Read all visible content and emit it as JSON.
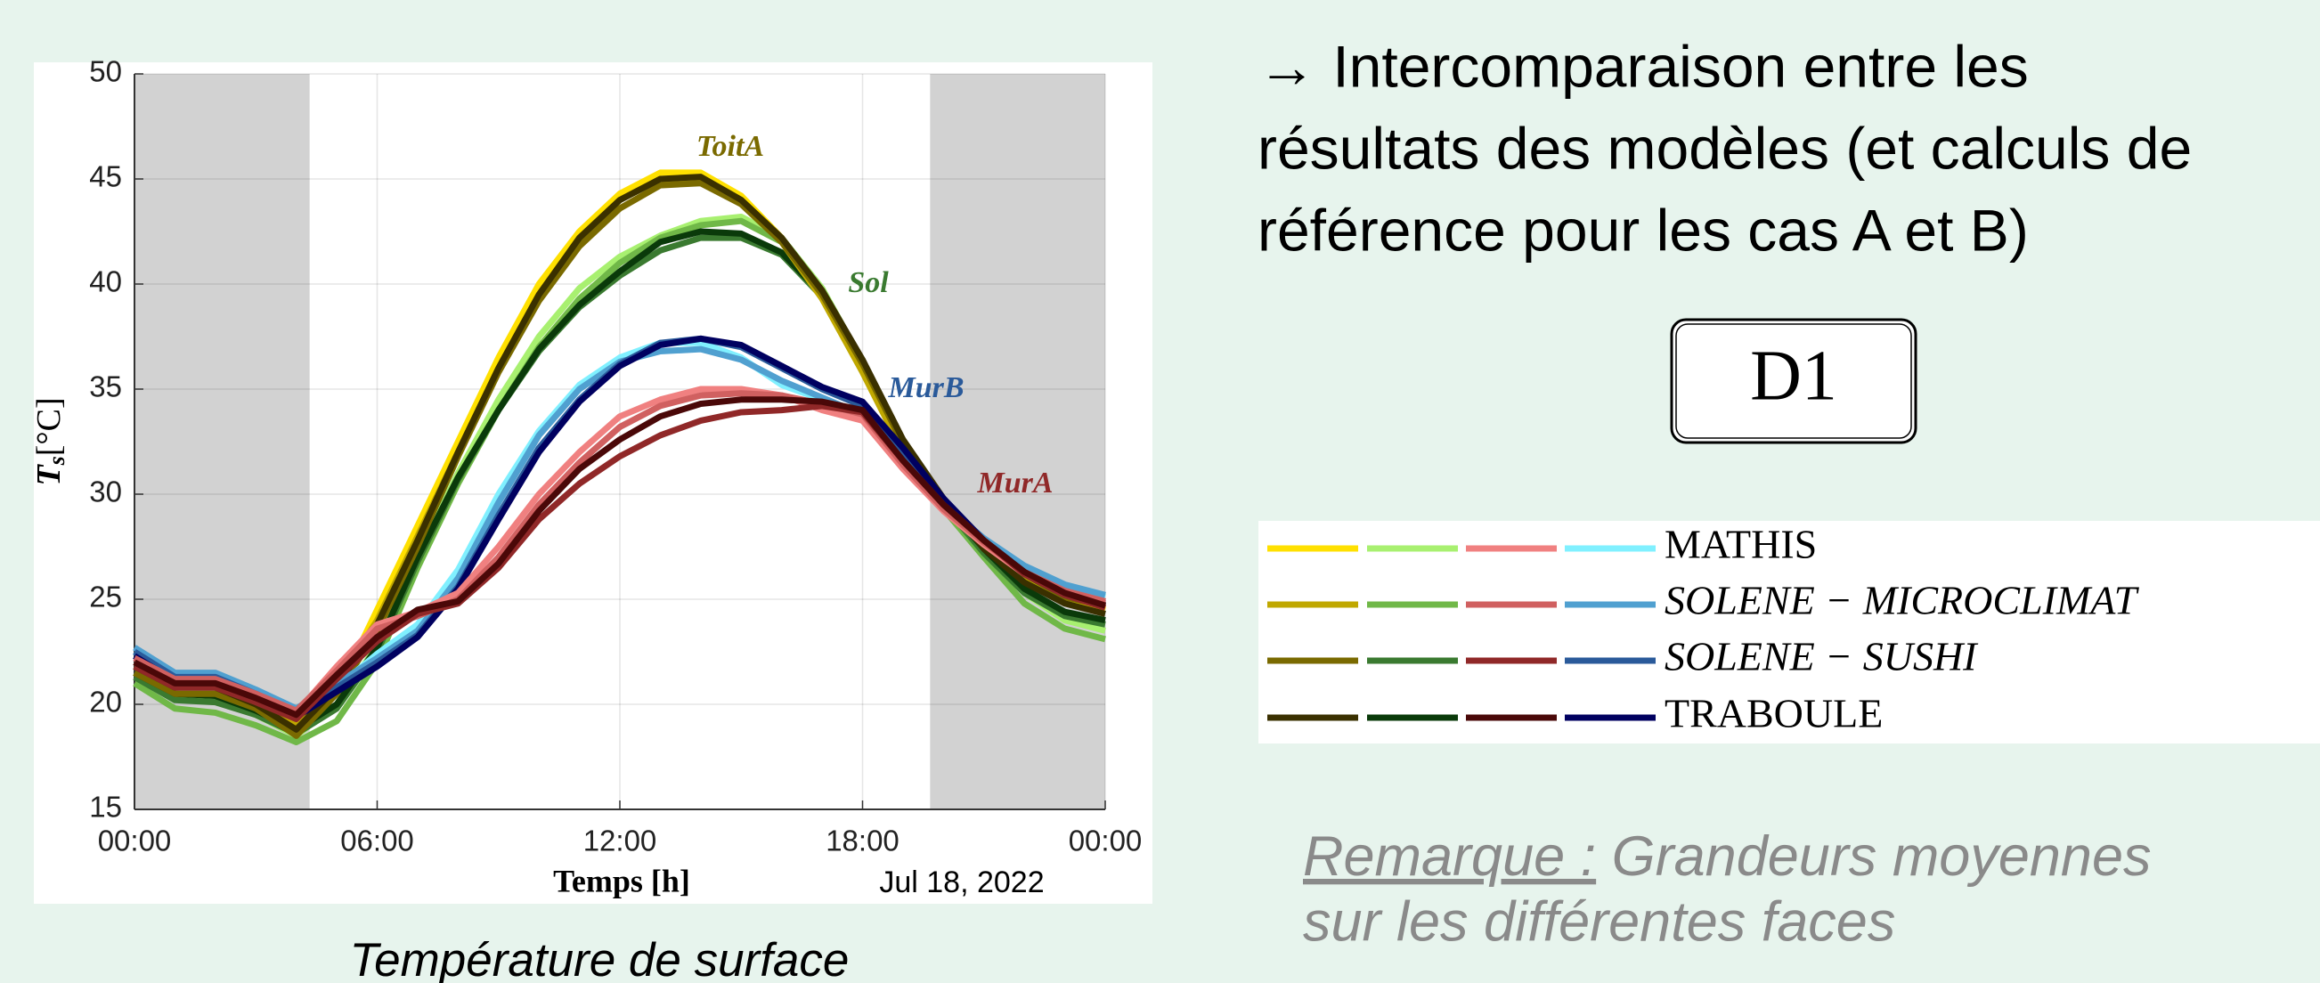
{
  "chart_data": {
    "type": "line",
    "caption": "Température de surface",
    "ylabel_main": "T",
    "ylabel_sub": "s",
    "ylabel_unit": "[°C]",
    "xlabel": "Temps [h]",
    "date_label": "Jul 18, 2022",
    "x": [
      0,
      1,
      2,
      3,
      4,
      5,
      6,
      7,
      8,
      9,
      10,
      11,
      12,
      13,
      14,
      15,
      16,
      17,
      18,
      19,
      20,
      21,
      22,
      23,
      24
    ],
    "xlim": [
      0,
      24
    ],
    "xticks": [
      {
        "value": 0,
        "label": "00:00"
      },
      {
        "value": 6,
        "label": "06:00"
      },
      {
        "value": 12,
        "label": "12:00"
      },
      {
        "value": 18,
        "label": "18:00"
      },
      {
        "value": 24,
        "label": "00:00"
      }
    ],
    "ylim": [
      15,
      50
    ],
    "yticks": [
      15,
      20,
      25,
      30,
      35,
      40,
      45,
      50
    ],
    "grid": true,
    "shaded_regions": [
      [
        0,
        4.33
      ],
      [
        19.67,
        24
      ]
    ],
    "groups": [
      {
        "label": "ToitA",
        "series": [
          {
            "name": "MATHIS",
            "color": "#ffe000",
            "values": [
              21.8,
              20.8,
              20.8,
              20,
              18.8,
              20.5,
              24.5,
              28.5,
              32.5,
              36.5,
              40,
              42.5,
              44.3,
              45.3,
              45.3,
              44.2,
              42.2,
              39.5,
              36,
              32.2,
              29.5,
              27.5,
              26,
              25,
              24.5
            ]
          },
          {
            "name": "SOLENE − MICROCLIMAT",
            "color": "#c0a800",
            "values": [
              22,
              21,
              21,
              20.2,
              19,
              21,
              24,
              28,
              32,
              36,
              39.5,
              42,
              44,
              45,
              45,
              44,
              42,
              39.3,
              35.8,
              32,
              29.6,
              27.6,
              26,
              25,
              24.6
            ]
          },
          {
            "name": "SOLENE − SUSHI",
            "color": "#7a6a00",
            "values": [
              21.5,
              20.5,
              20.5,
              19.8,
              18.5,
              20.5,
              23.5,
              27.5,
              31.8,
              35.8,
              39.2,
              41.8,
              43.6,
              44.7,
              44.8,
              43.8,
              42,
              39.5,
              36.2,
              32.4,
              29.8,
              27.7,
              26.2,
              25.1,
              24.7
            ]
          },
          {
            "name": "TRABOULE",
            "color": "#3a3000",
            "values": [
              21.8,
              20.8,
              20.8,
              20,
              18.8,
              20.8,
              23.8,
              27.8,
              32,
              36,
              39.5,
              42.2,
              44,
              45,
              45.1,
              44,
              42.2,
              39.7,
              36.4,
              32.6,
              29.8,
              27.4,
              25.8,
              24.8,
              24.3
            ]
          }
        ]
      },
      {
        "label": "Sol",
        "series": [
          {
            "name": "MATHIS",
            "color": "#a8f070",
            "values": [
              21.5,
              20.3,
              20.2,
              19.5,
              18.5,
              20,
              22.8,
              27,
              31,
              34.5,
              37.5,
              39.8,
              41.3,
              42.3,
              43,
              43.2,
              42.2,
              39.8,
              36.3,
              32.2,
              29.4,
              27.2,
              25.3,
              24,
              23.5
            ]
          },
          {
            "name": "SOLENE − MICROCLIMAT",
            "color": "#70b848",
            "values": [
              21,
              19.8,
              19.6,
              19,
              18.2,
              19.2,
              22,
              26.5,
              30.5,
              34,
              37,
              39.3,
              41,
              42.2,
              42.8,
              43,
              42,
              39.6,
              36,
              32,
              29.3,
              27,
              24.8,
              23.6,
              23.1
            ]
          },
          {
            "name": "SOLENE − SUSHI",
            "color": "#3a7a30",
            "values": [
              21.3,
              20.2,
              20.1,
              19.5,
              18.6,
              19.8,
              22.5,
              26.8,
              30.7,
              34,
              36.8,
              38.9,
              40.4,
              41.6,
              42.2,
              42.2,
              41.4,
              39.4,
              36.2,
              32.3,
              29.5,
              27.2,
              25.3,
              24.2,
              23.8
            ]
          },
          {
            "name": "TRABOULE",
            "color": "#0a3a0a",
            "values": [
              21.5,
              20.5,
              20.4,
              19.7,
              18.8,
              20,
              22.7,
              27,
              30.8,
              34,
              36.9,
              39,
              40.6,
              42,
              42.5,
              42.4,
              41.5,
              39.5,
              36.3,
              32.4,
              29.6,
              27.4,
              25.5,
              24.4,
              24
            ]
          }
        ]
      },
      {
        "label": "MurA",
        "series": [
          {
            "name": "MATHIS",
            "color": "#f08080",
            "values": [
              22,
              21,
              21,
              20.3,
              19.6,
              21.8,
              23.8,
              24.4,
              25.3,
              27.5,
              30,
              32,
              33.7,
              34.5,
              35,
              35,
              34.7,
              34,
              33.5,
              31.2,
              29.2,
              27.6,
              26.2,
              25.3,
              24.8
            ]
          },
          {
            "name": "SOLENE − MICROCLIMAT",
            "color": "#d06060",
            "values": [
              22.2,
              21.2,
              21.2,
              20.5,
              19.7,
              21.6,
              23.6,
              24.2,
              25,
              27,
              29.5,
              31.5,
              33.2,
              34.2,
              34.7,
              34.8,
              34.7,
              34.3,
              33.8,
              31.4,
              29.3,
              27.7,
              26.3,
              25.4,
              24.9
            ]
          },
          {
            "name": "SOLENE − SUSHI",
            "color": "#902828",
            "values": [
              21.8,
              20.8,
              20.8,
              20.1,
              19.3,
              21.2,
              23,
              24.3,
              24.8,
              26.5,
              28.8,
              30.5,
              31.8,
              32.8,
              33.5,
              33.9,
              34,
              34.2,
              33.9,
              31.6,
              29.5,
              27.8,
              26.2,
              25.2,
              24.6
            ]
          },
          {
            "name": "TRABOULE",
            "color": "#4a0808",
            "values": [
              22,
              21,
              21,
              20.3,
              19.5,
              21.4,
              23.2,
              24.5,
              24.9,
              26.7,
              29.2,
              31.2,
              32.6,
              33.7,
              34.3,
              34.5,
              34.5,
              34.4,
              34,
              31.6,
              29.5,
              27.8,
              26.3,
              25.3,
              24.7
            ]
          }
        ]
      },
      {
        "label": "MurB",
        "series": [
          {
            "name": "MATHIS",
            "color": "#80f0ff",
            "values": [
              22.5,
              21.3,
              21.3,
              20.5,
              19.6,
              20.8,
              22.4,
              23.8,
              26.4,
              30,
              33,
              35.2,
              36.5,
              37.2,
              37.2,
              36.5,
              35.2,
              34.5,
              33.5,
              31.5,
              29.3,
              27.7,
              26.5,
              25.6,
              25.1
            ]
          },
          {
            "name": "SOLENE − MICROCLIMAT",
            "color": "#50a0d0",
            "values": [
              22.7,
              21.5,
              21.5,
              20.7,
              19.8,
              21,
              22.2,
              23.5,
              26,
              29.6,
              32.8,
              35,
              36.3,
              36.8,
              36.9,
              36.4,
              35.4,
              34.6,
              33.8,
              31.8,
              29.5,
              27.9,
              26.6,
              25.7,
              25.2
            ]
          },
          {
            "name": "SOLENE − SUSHI",
            "color": "#2a5a9a",
            "values": [
              22.5,
              21.3,
              21.3,
              20.5,
              19.6,
              20.8,
              22,
              23.3,
              25.6,
              29,
              32.2,
              34.5,
              36.2,
              37.2,
              37.4,
              37,
              36,
              35,
              34.2,
              32,
              29.6,
              27.8,
              26.3,
              25.3,
              24.8
            ]
          },
          {
            "name": "TRABOULE",
            "color": "#000060",
            "values": [
              22.3,
              21.1,
              21.1,
              20.3,
              19.4,
              20.6,
              21.8,
              23.2,
              25.5,
              28.8,
              32,
              34.4,
              36.1,
              37.1,
              37.4,
              37.1,
              36.1,
              35.1,
              34.4,
              32.2,
              29.8,
              27.8,
              26.2,
              25.2,
              24.7
            ]
          }
        ]
      }
    ]
  },
  "text": {
    "heading_lines": [
      "→ Intercomparaison entre les",
      "résultats des modèles (et calculs de",
      "référence pour les cas A et B)"
    ],
    "box_label": "D1",
    "remark_lead": "Remarque :",
    "remark_lines": [
      " Grandeurs moyennes",
      "sur les différentes faces"
    ]
  }
}
